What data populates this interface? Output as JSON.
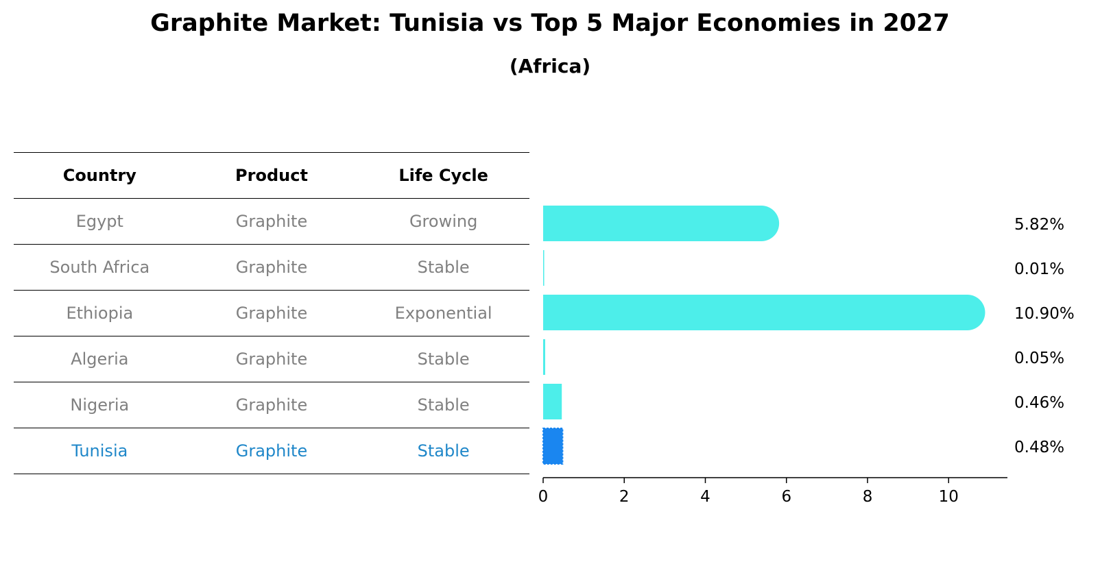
{
  "title": "Graphite Market: Tunisia vs Top 5 Major Economies in 2027",
  "subtitle": "(Africa)",
  "table": {
    "headers": [
      "Country",
      "Product",
      "Life Cycle"
    ],
    "rows": [
      [
        "Egypt",
        "Graphite",
        "Growing"
      ],
      [
        "South Africa",
        "Graphite",
        "Stable"
      ],
      [
        "Ethiopia",
        "Graphite",
        "Exponential"
      ],
      [
        "Algeria",
        "Graphite",
        "Stable"
      ],
      [
        "Nigeria",
        "Graphite",
        "Stable"
      ],
      [
        "Tunisia",
        "Graphite",
        "Stable"
      ]
    ],
    "highlight_row": 5
  },
  "colors": {
    "bar": "#4deeea",
    "highlight_bar": "#1a86f0",
    "highlight_text": "#1f87c9",
    "row_text": "#808080"
  },
  "chart_data": {
    "type": "bar",
    "orientation": "horizontal",
    "categories": [
      "Egypt",
      "South Africa",
      "Ethiopia",
      "Algeria",
      "Nigeria",
      "Tunisia"
    ],
    "values": [
      5.82,
      0.01,
      10.9,
      0.05,
      0.46,
      0.48
    ],
    "value_labels": [
      "5.82%",
      "0.01%",
      "10.90%",
      "0.05%",
      "0.46%",
      "0.48%"
    ],
    "highlight_index": 5,
    "xlim": [
      0,
      11.45
    ],
    "xticks": [
      0,
      2,
      4,
      6,
      8,
      10
    ],
    "title": "",
    "xlabel": "",
    "ylabel": ""
  }
}
